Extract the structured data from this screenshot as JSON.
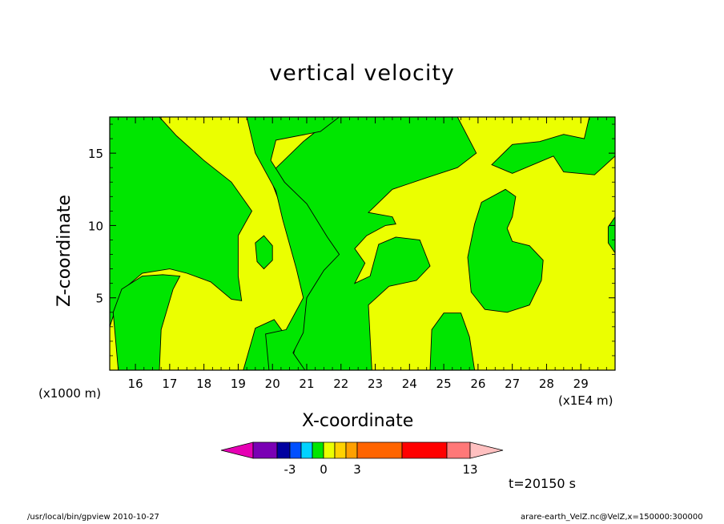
{
  "chart_data": {
    "type": "heatmap",
    "title": "vertical velocity",
    "xlabel": "X-coordinate",
    "ylabel": "Z-coordinate",
    "x_unit_note": "(x1E4 m)",
    "y_unit_note": "(x1000 m)",
    "xlim": [
      15.25,
      30.0
    ],
    "ylim": [
      0.0,
      17.5
    ],
    "x_ticks": [
      16,
      17,
      18,
      19,
      20,
      21,
      22,
      23,
      24,
      25,
      26,
      27,
      28,
      29
    ],
    "y_ticks": [
      5,
      10,
      15
    ],
    "background_value_color": "#ebff00",
    "negative_region_color": "#00e600",
    "regions": [
      {
        "name": "top-left band",
        "points": [
          [
            15.25,
            17.5
          ],
          [
            16.7,
            17.5
          ],
          [
            17.2,
            16.2
          ],
          [
            18.0,
            14.5
          ],
          [
            18.8,
            13.0
          ],
          [
            19.4,
            11.0
          ],
          [
            19.0,
            9.3
          ],
          [
            19.0,
            6.5
          ],
          [
            19.1,
            4.8
          ],
          [
            18.8,
            4.9
          ],
          [
            18.2,
            6.1
          ],
          [
            17.5,
            6.7
          ],
          [
            17.0,
            7.0
          ],
          [
            16.2,
            6.7
          ],
          [
            15.6,
            5.5
          ],
          [
            15.25,
            3.0
          ],
          [
            15.25,
            17.5
          ]
        ]
      },
      {
        "name": "bottom-left column",
        "points": [
          [
            15.5,
            0
          ],
          [
            16.7,
            0
          ],
          [
            16.75,
            2.8
          ],
          [
            17.1,
            5.6
          ],
          [
            17.3,
            6.5
          ],
          [
            16.8,
            6.6
          ],
          [
            16.2,
            6.5
          ],
          [
            15.6,
            5.6
          ],
          [
            15.35,
            4.0
          ],
          [
            15.5,
            0
          ]
        ]
      },
      {
        "name": "central column",
        "points": [
          [
            19.15,
            0
          ],
          [
            19.5,
            2.9
          ],
          [
            20.05,
            3.5
          ],
          [
            20.35,
            2.5
          ],
          [
            20.6,
            1.0
          ],
          [
            20.75,
            2.3
          ],
          [
            21.0,
            5.0
          ],
          [
            20.85,
            7.0
          ],
          [
            20.5,
            9.0
          ],
          [
            20.3,
            11.0
          ],
          [
            19.9,
            13.5
          ],
          [
            20.9,
            15.8
          ],
          [
            21.8,
            17.5
          ],
          [
            25.4,
            17.5
          ],
          [
            25.95,
            15.0
          ],
          [
            25.4,
            14.0
          ],
          [
            24.5,
            13.3
          ],
          [
            23.5,
            12.5
          ],
          [
            22.8,
            10.9
          ],
          [
            23.5,
            10.6
          ],
          [
            23.6,
            10.1
          ],
          [
            23.3,
            10.0
          ],
          [
            22.75,
            9.3
          ],
          [
            22.4,
            8.4
          ],
          [
            22.7,
            7.4
          ],
          [
            22.4,
            6.0
          ],
          [
            22.85,
            6.5
          ],
          [
            23.1,
            8.7
          ],
          [
            23.6,
            9.2
          ],
          [
            24.3,
            9.0
          ],
          [
            24.6,
            7.2
          ],
          [
            24.2,
            6.2
          ],
          [
            23.4,
            5.8
          ],
          [
            22.8,
            4.5
          ],
          [
            22.9,
            0
          ],
          [
            19.15,
            0
          ]
        ]
      },
      {
        "name": "upper-centre blob",
        "points": [
          [
            19.25,
            17.5
          ],
          [
            21.95,
            17.5
          ],
          [
            21.4,
            16.5
          ],
          [
            20.1,
            15.9
          ],
          [
            19.95,
            14.5
          ],
          [
            20.35,
            13.0
          ],
          [
            21.0,
            11.5
          ],
          [
            21.6,
            9.2
          ],
          [
            21.95,
            8.0
          ],
          [
            21.5,
            6.9
          ],
          [
            21.0,
            5.0
          ],
          [
            20.9,
            2.6
          ],
          [
            20.6,
            1.2
          ],
          [
            20.95,
            0
          ],
          [
            19.9,
            0
          ],
          [
            19.8,
            2.5
          ],
          [
            20.4,
            2.8
          ],
          [
            20.9,
            5.0
          ],
          [
            20.7,
            7.0
          ],
          [
            20.3,
            10.4
          ],
          [
            20.1,
            12.4
          ],
          [
            19.5,
            15.0
          ],
          [
            19.25,
            17.5
          ]
        ]
      },
      {
        "name": "small blob",
        "points": [
          [
            19.5,
            8.8
          ],
          [
            19.75,
            9.3
          ],
          [
            20.0,
            8.6
          ],
          [
            20.0,
            7.6
          ],
          [
            19.75,
            7.0
          ],
          [
            19.55,
            7.5
          ],
          [
            19.5,
            8.8
          ]
        ]
      },
      {
        "name": "bottom-centre column",
        "points": [
          [
            24.6,
            0
          ],
          [
            24.65,
            2.8
          ],
          [
            25.0,
            3.95
          ],
          [
            25.5,
            3.95
          ],
          [
            25.75,
            2.3
          ],
          [
            25.9,
            0
          ],
          [
            24.6,
            0
          ]
        ]
      },
      {
        "name": "right blob",
        "points": [
          [
            26.1,
            11.6
          ],
          [
            26.8,
            12.5
          ],
          [
            27.1,
            12.0
          ],
          [
            27.0,
            10.6
          ],
          [
            26.85,
            9.8
          ],
          [
            27.0,
            8.9
          ],
          [
            27.5,
            8.6
          ],
          [
            27.9,
            7.6
          ],
          [
            27.85,
            6.2
          ],
          [
            27.5,
            4.5
          ],
          [
            26.85,
            4.0
          ],
          [
            26.2,
            4.2
          ],
          [
            25.8,
            5.4
          ],
          [
            25.7,
            7.8
          ],
          [
            25.9,
            10.1
          ],
          [
            26.1,
            11.6
          ]
        ]
      },
      {
        "name": "top-right band",
        "points": [
          [
            26.4,
            14.2
          ],
          [
            27.0,
            15.6
          ],
          [
            27.8,
            15.8
          ],
          [
            28.5,
            16.3
          ],
          [
            29.1,
            16.0
          ],
          [
            29.25,
            17.5
          ],
          [
            30.0,
            17.5
          ],
          [
            30.0,
            14.8
          ],
          [
            29.4,
            13.5
          ],
          [
            28.5,
            13.7
          ],
          [
            28.2,
            14.8
          ],
          [
            27.7,
            14.3
          ],
          [
            27.0,
            13.6
          ],
          [
            26.4,
            14.2
          ]
        ]
      },
      {
        "name": "right edge blob",
        "points": [
          [
            30.0,
            10.6
          ],
          [
            29.8,
            9.9
          ],
          [
            29.8,
            8.8
          ],
          [
            30.0,
            8.1
          ],
          [
            30.0,
            10.6
          ]
        ]
      }
    ],
    "colorbar": {
      "colors": [
        "#e600b4",
        "#7a00b4",
        "#0000a0",
        "#0050ff",
        "#00d2ff",
        "#00e600",
        "#ebff00",
        "#ffd200",
        "#ffa000",
        "#ff6400",
        "#ff0000",
        "#ff7878",
        "#ffc0c0"
      ],
      "tick_labels": [
        "-3",
        "0",
        "3",
        "13"
      ]
    },
    "annotations": [
      "t=20150 s"
    ]
  },
  "footer": {
    "left": "/usr/local/bin/gpview   2010-10-27",
    "right": "arare-earth_VelZ.nc@VelZ,x=150000:300000"
  }
}
